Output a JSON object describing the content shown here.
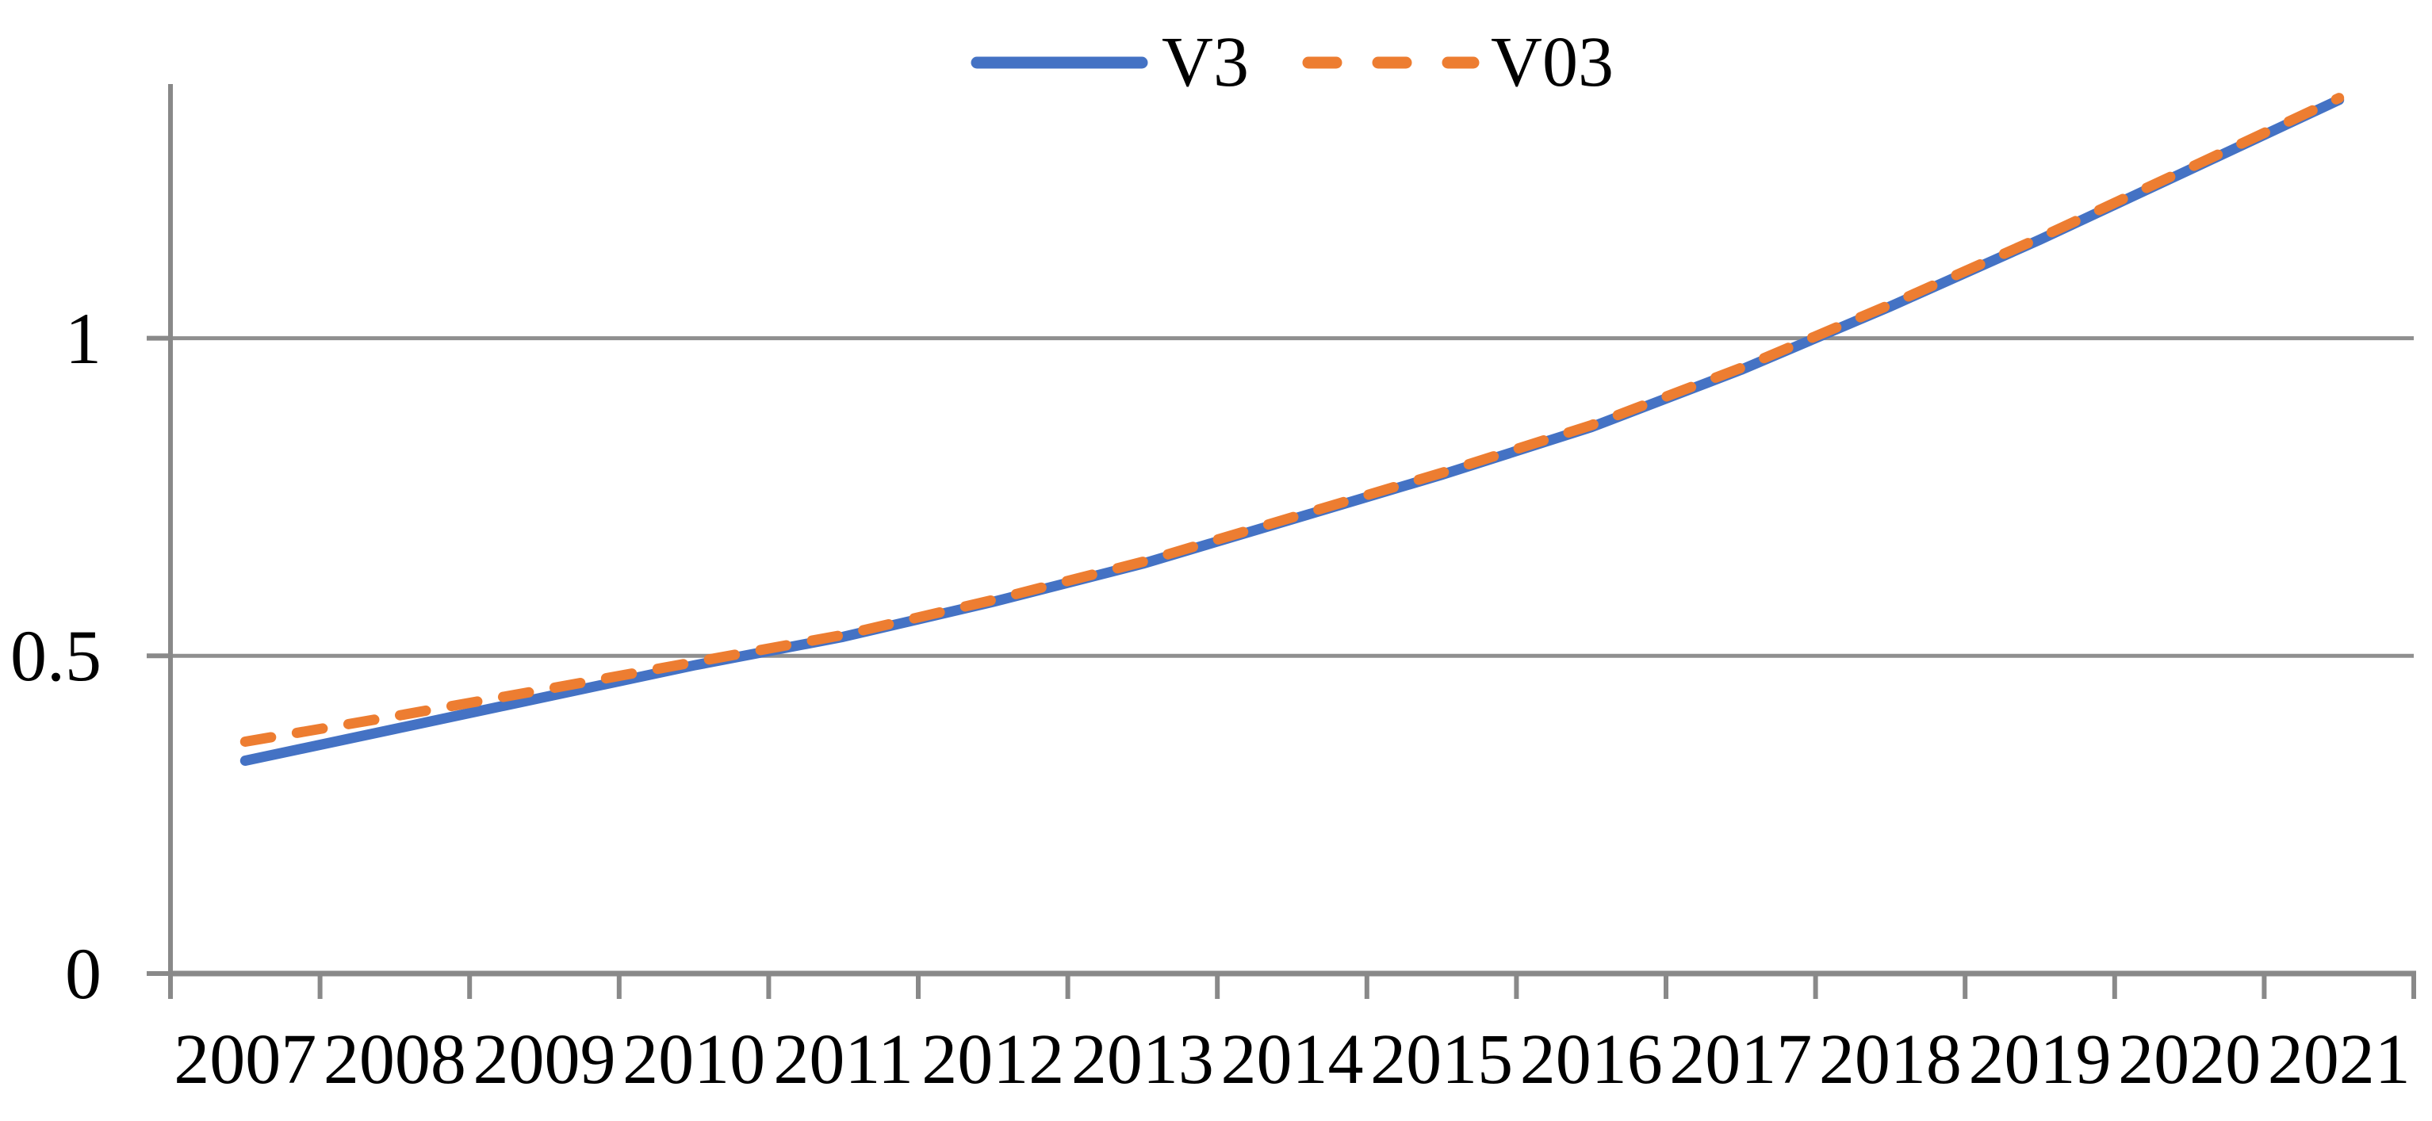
{
  "figure": {
    "background": "#ffffff"
  },
  "chart_data": {
    "type": "line",
    "title": "",
    "xlabel": "",
    "ylabel": "",
    "categories": [
      "2007",
      "2008",
      "2009",
      "2010",
      "2011",
      "2012",
      "2013",
      "2014",
      "2015",
      "2016",
      "2017",
      "2018",
      "2019",
      "2020",
      "2021"
    ],
    "series": [
      {
        "name": "V3",
        "color": "#4472C4",
        "line_style": "solid",
        "values": [
          0.335,
          0.385,
          0.435,
          0.485,
          0.53,
          0.585,
          0.645,
          0.715,
          0.785,
          0.86,
          0.95,
          1.05,
          1.155,
          1.265,
          1.375
        ]
      },
      {
        "name": "V03",
        "color": "#ED7D31",
        "line_style": "dashed",
        "values": [
          0.365,
          0.405,
          0.447,
          0.49,
          0.533,
          0.588,
          0.648,
          0.718,
          0.788,
          0.863,
          0.953,
          1.053,
          1.158,
          1.268,
          1.378
        ]
      }
    ],
    "ylim": [
      0,
      1.4
    ],
    "y_ticks": [
      {
        "value": 0,
        "label": "0"
      },
      {
        "value": 0.5,
        "label": "0.5"
      },
      {
        "value": 1,
        "label": "1"
      }
    ],
    "grid": "horizontal-only",
    "legend_position": "top-center",
    "axis_color": "#898989",
    "grid_color": "#8f8f8f",
    "tick_label_color": "#000000"
  }
}
